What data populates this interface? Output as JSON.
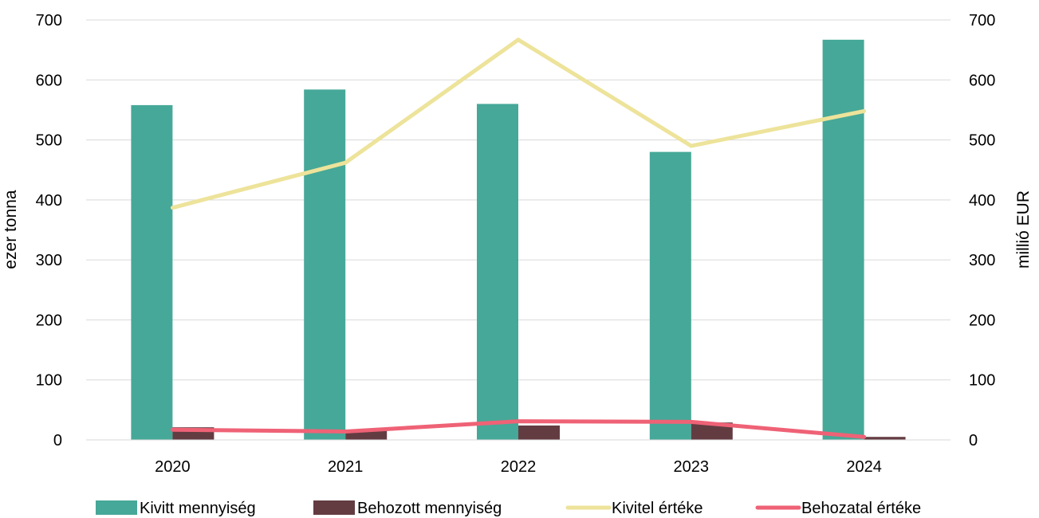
{
  "chart_data": {
    "type": "bar",
    "categories": [
      "2020",
      "2021",
      "2022",
      "2023",
      "2024"
    ],
    "bar_series": [
      {
        "name": "Kivitt mennyiség",
        "axis": "left",
        "color": "#46a898",
        "values": [
          558,
          584,
          560,
          480,
          667
        ]
      },
      {
        "name": "Behozott mennyiség",
        "axis": "left",
        "color": "#633c42",
        "values": [
          21,
          15,
          24,
          29,
          5
        ]
      }
    ],
    "line_series": [
      {
        "name": "Kivitel értéke",
        "axis": "right",
        "color": "#ede39a",
        "values": [
          387,
          462,
          667,
          490,
          548
        ]
      },
      {
        "name": "Behozatal értéke",
        "axis": "right",
        "color": "#ef6276",
        "values": [
          17,
          14,
          31,
          30,
          5
        ]
      }
    ],
    "ylabel": "ezer tonna",
    "y2label": "millió EUR",
    "ylim": [
      0,
      700
    ],
    "y2lim": [
      0,
      700
    ],
    "yticks": [
      "0",
      "100",
      "200",
      "300",
      "400",
      "500",
      "600",
      "700"
    ],
    "y2ticks": [
      "0",
      "100",
      "200",
      "300",
      "400",
      "500",
      "600",
      "700"
    ],
    "grid": true,
    "legend_position": "bottom"
  }
}
